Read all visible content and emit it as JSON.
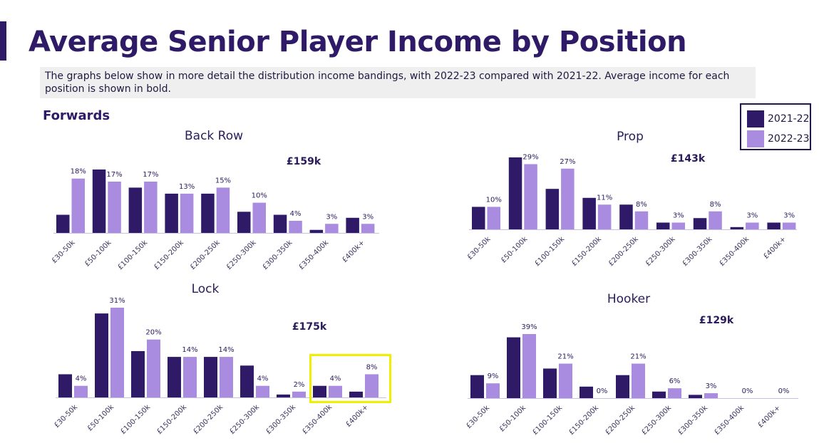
{
  "page": {
    "title": "Average Senior Player Income by Position",
    "description": "The graphs below show in more detail the distribution income bandings, with 2022-23 compared with 2021-22. Average income for each position is shown in bold.",
    "section": "Forwards"
  },
  "legend": [
    {
      "name": "2021-22",
      "color": "#2e1a66"
    },
    {
      "name": "2022-23",
      "color": "#a98bdf"
    }
  ],
  "colors": {
    "series_2021": "#2e1a66",
    "series_2022": "#a98bdf",
    "axis": "#c8c0e0",
    "highlight": "#eef000"
  },
  "chart_data": [
    {
      "id": "back-row",
      "type": "bar",
      "title": "Back Row",
      "average_label": "£159k",
      "categories": [
        "£30-50k",
        "£50-100k",
        "£100-150k",
        "£150-200k",
        "£200-250k",
        "£250-300k",
        "£300-350k",
        "£350-400k",
        "£400k+"
      ],
      "series": [
        {
          "name": "2021-22",
          "values": [
            6,
            21,
            15,
            13,
            13,
            7,
            6,
            1,
            5
          ]
        },
        {
          "name": "2022-23",
          "values": [
            18,
            17,
            17,
            13,
            15,
            10,
            4,
            3,
            3
          ],
          "labels": [
            "18%",
            "17%",
            "17%",
            "13%",
            "15%",
            "10%",
            "4%",
            "3%",
            "3%"
          ]
        }
      ],
      "ylim": [
        0,
        21
      ]
    },
    {
      "id": "prop",
      "type": "bar",
      "title": "Prop",
      "average_label": "£143k",
      "categories": [
        "£30-50k",
        "£50-100k",
        "£100-150k",
        "£150-200k",
        "£200-250k",
        "£250-300k",
        "£300-350k",
        "£350-400k",
        "£400k+"
      ],
      "series": [
        {
          "name": "2021-22",
          "values": [
            10,
            32,
            18,
            14,
            11,
            3,
            5,
            1,
            3
          ]
        },
        {
          "name": "2022-23",
          "values": [
            10,
            29,
            27,
            11,
            8,
            3,
            8,
            3,
            3
          ],
          "labels": [
            "10%",
            "29%",
            "27%",
            "11%",
            "8%",
            "3%",
            "8%",
            "3%",
            "3%"
          ]
        }
      ],
      "ylim": [
        0,
        32
      ]
    },
    {
      "id": "lock",
      "type": "bar",
      "title": "Lock",
      "average_label": "£175k",
      "categories": [
        "£30-50k",
        "£50-100k",
        "£100-150k",
        "£150-200k",
        "£200-250k",
        "£250-300k",
        "£300-350k",
        "£350-400k",
        "£400k+"
      ],
      "series": [
        {
          "name": "2021-22",
          "values": [
            8,
            29,
            16,
            14,
            14,
            11,
            1,
            4,
            2
          ]
        },
        {
          "name": "2022-23",
          "values": [
            4,
            31,
            20,
            14,
            14,
            4,
            2,
            4,
            8
          ],
          "labels": [
            "4%",
            "31%",
            "20%",
            "14%",
            "14%",
            "4%",
            "2%",
            "4%",
            "8%"
          ]
        }
      ],
      "ylim": [
        0,
        31
      ],
      "highlighted_categories": [
        "£350-400k",
        "£400k+"
      ]
    },
    {
      "id": "hooker",
      "type": "bar",
      "title": "Hooker",
      "average_label": "£129k",
      "categories": [
        "£30-50k",
        "£50-100k",
        "£100-150k",
        "£150-200k",
        "£200-250k",
        "£250-300k",
        "£300-350k",
        "£350-400k",
        "£400k+"
      ],
      "series": [
        {
          "name": "2021-22",
          "values": [
            14,
            37,
            18,
            7,
            14,
            4,
            2,
            0,
            0
          ]
        },
        {
          "name": "2022-23",
          "values": [
            9,
            39,
            21,
            0,
            21,
            6,
            3,
            0,
            0
          ],
          "labels": [
            "9%",
            "39%",
            "21%",
            "0%",
            "21%",
            "6%",
            "3%",
            "0%",
            "0%"
          ]
        }
      ],
      "ylim": [
        0,
        39
      ]
    }
  ]
}
